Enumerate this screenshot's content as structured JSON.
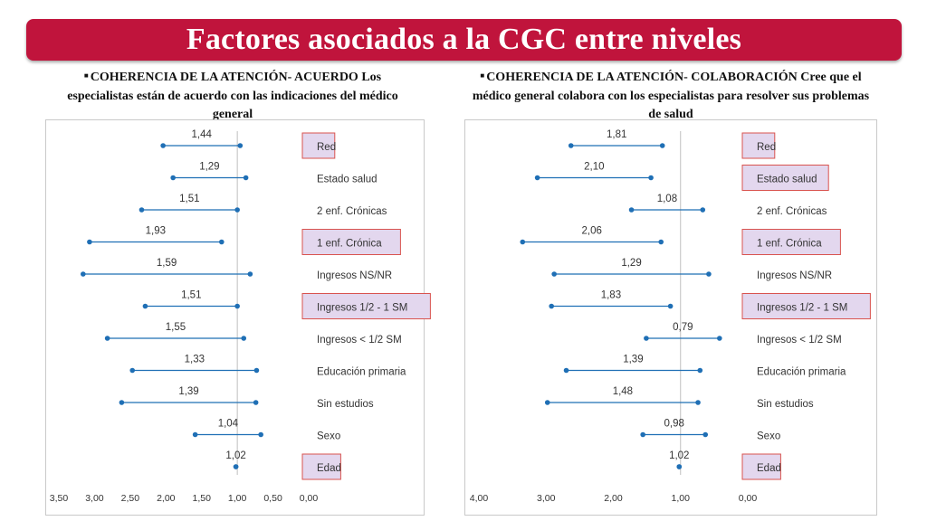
{
  "header": {
    "title": "Factores asociados a la CGC entre niveles"
  },
  "colors": {
    "accent": "#c0143c",
    "series": "#1f6fb5",
    "highlight_fill": "#e3d7ee",
    "highlight_border": "#d9534f"
  },
  "chart_data": [
    {
      "type": "dumbbell",
      "subtitle_bold": "COHERENCIA DE LA ATENCIÓN- ACUERDO",
      "subtitle_rest": " Los especialistas están de acuerdo con las indicaciones del médico general",
      "categories": [
        "Red",
        "Estado salud",
        "2 enf. Crónicas",
        "1 enf. Crónica",
        "Ingresos NS/NR",
        "Ingresos 1/2 - 1 SM",
        "Ingresos < 1/2 SM",
        "Educación primaria",
        "Sin estudios",
        "Sexo",
        "Edad"
      ],
      "labels": [
        "1,44",
        "1,29",
        "1,51",
        "1,93",
        "1,59",
        "1,51",
        "1,55",
        "1,33",
        "1,39",
        "1,04",
        "1,02"
      ],
      "low": [
        0.96,
        0.88,
        1.0,
        1.22,
        0.82,
        1.0,
        0.91,
        0.73,
        0.74,
        0.67,
        1.02
      ],
      "high": [
        2.04,
        1.9,
        2.34,
        3.07,
        3.16,
        2.29,
        2.82,
        2.47,
        2.62,
        1.59,
        1.02
      ],
      "highlighted": [
        "Red",
        "1 enf. Crónica",
        "Ingresos 1/2 - 1 SM",
        "Edad"
      ],
      "xlim": [
        3.5,
        0.0
      ],
      "ticks": [
        "3,50",
        "3,00",
        "2,50",
        "2,00",
        "1,50",
        "1,00",
        "0,50",
        "0,00"
      ],
      "tick_values": [
        3.5,
        3.0,
        2.5,
        2.0,
        1.5,
        1.0,
        0.5,
        0.0
      ],
      "reference_line": 1.0
    },
    {
      "type": "dumbbell",
      "subtitle_bold": "COHERENCIA DE LA ATENCIÓN- COLABORACIÓN",
      "subtitle_rest": " Cree que el médico general colabora con los especialistas para resolver sus problemas de salud",
      "categories": [
        "Red",
        "Estado salud",
        "2 enf. Crónicas",
        "1 enf. Crónica",
        "Ingresos NS/NR",
        "Ingresos 1/2 - 1 SM",
        "Ingresos < 1/2 SM",
        "Educación primaria",
        "Sin estudios",
        "Sexo",
        "Edad"
      ],
      "labels": [
        "1,81",
        "2,10",
        "1,08",
        "2,06",
        "1,29",
        "1,83",
        "0,79",
        "1,39",
        "1,48",
        "0,98",
        "1,02"
      ],
      "low": [
        1.27,
        1.44,
        0.67,
        1.29,
        0.58,
        1.15,
        0.42,
        0.71,
        0.74,
        0.63,
        1.02
      ],
      "high": [
        2.63,
        3.13,
        1.73,
        3.35,
        2.88,
        2.92,
        1.51,
        2.7,
        2.98,
        1.56,
        1.02
      ],
      "highlighted": [
        "Red",
        "Estado salud",
        "1 enf. Crónica",
        "Ingresos 1/2 - 1 SM",
        "Edad"
      ],
      "xlim": [
        4.0,
        0.0
      ],
      "ticks": [
        "4,00",
        "3,00",
        "2,00",
        "1,00",
        "0,00"
      ],
      "tick_values": [
        4.0,
        3.0,
        2.0,
        1.0,
        0.0
      ],
      "reference_line": 1.0
    }
  ]
}
